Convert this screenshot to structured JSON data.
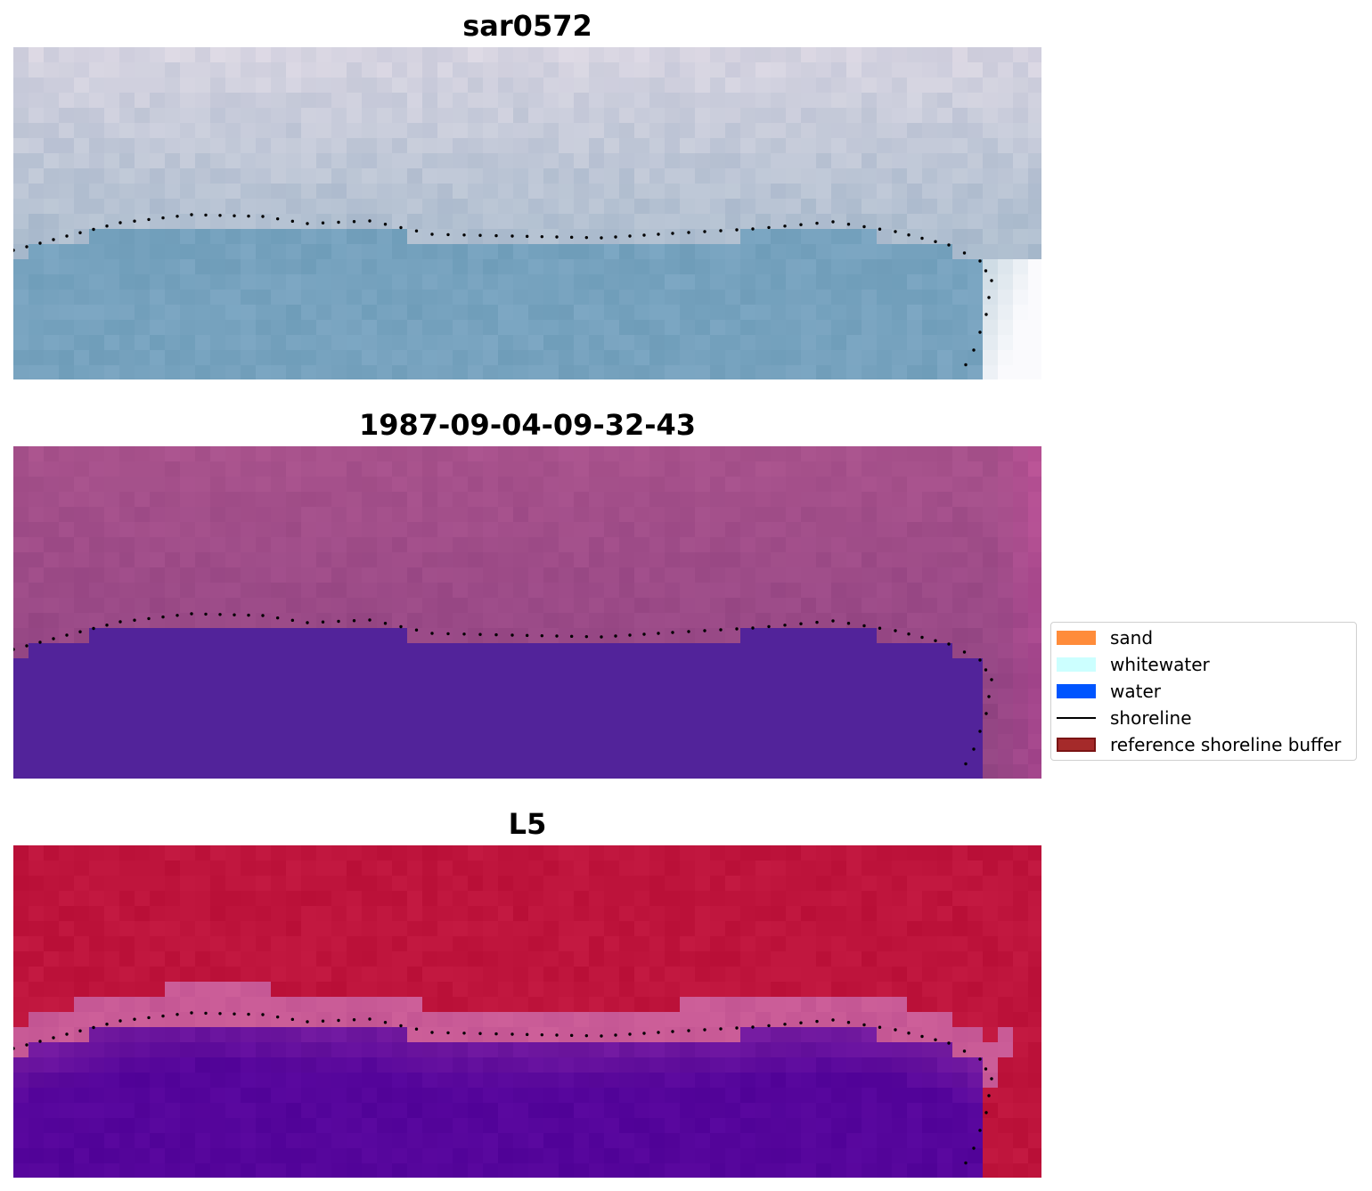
{
  "panels": [
    {
      "title": "sar0572",
      "style": "rgb"
    },
    {
      "title": "1987-09-04-09-32-43",
      "style": "classified"
    },
    {
      "title": "L5",
      "style": "index"
    }
  ],
  "legend": {
    "items": [
      {
        "label": "sand",
        "kind": "patch",
        "color": "#ff8c3a"
      },
      {
        "label": "whitewater",
        "kind": "patch",
        "color": "#ccffff"
      },
      {
        "label": "water",
        "kind": "patch",
        "color": "#0055ff"
      },
      {
        "label": "shoreline",
        "kind": "line",
        "color": "#000000"
      },
      {
        "label": "reference shoreline buffer",
        "kind": "patch",
        "color": "#a52a2a",
        "edge": "#7a1414"
      }
    ]
  },
  "colors": {
    "shoreline_dots": "#000000",
    "water_class": "#52239a",
    "land_index": "#bc1838",
    "water_index": "#5e0a9a"
  }
}
